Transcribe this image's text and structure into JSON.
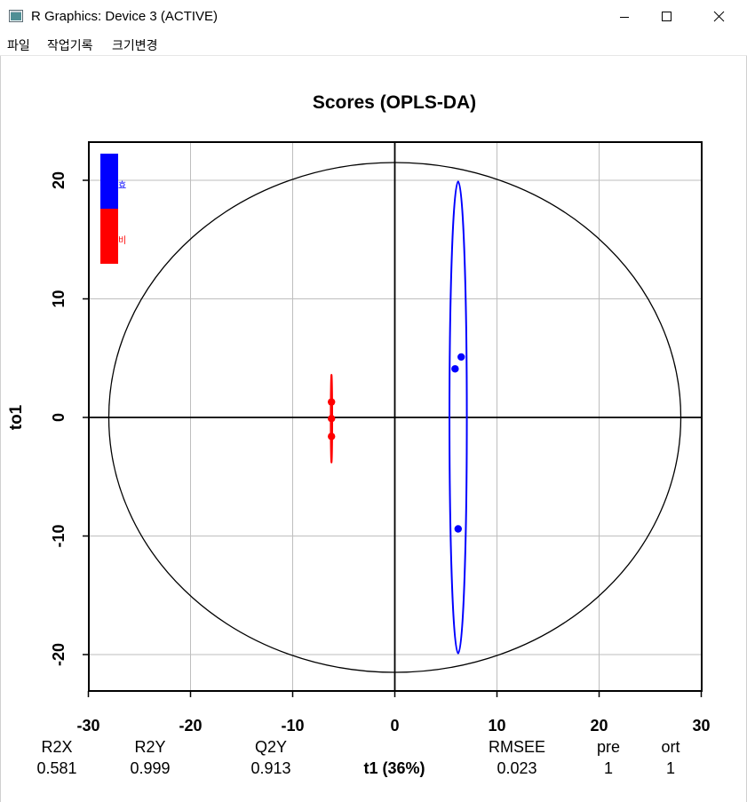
{
  "window": {
    "title": "R Graphics: Device 3 (ACTIVE)",
    "icon": "r-graphics-window-icon",
    "controls": [
      "minimize-icon",
      "maximize-icon",
      "close-icon"
    ]
  },
  "menu": {
    "items": [
      "파일",
      "작업기록",
      "크기변경"
    ]
  },
  "stats": {
    "headers": [
      "R2X",
      "R2Y",
      "Q2Y",
      "RMSEE",
      "pre",
      "ort"
    ],
    "values": [
      "0.581",
      "0.999",
      "0.913",
      "0.023",
      "1",
      "1"
    ]
  },
  "colors": {
    "group1": "#0000ff",
    "group2": "#ff0000",
    "grid": "#bebebe",
    "axis": "#000000"
  },
  "chart_data": {
    "type": "scatter",
    "title": "Scores (OPLS-DA)",
    "xlabel": "t1 (36%)",
    "ylabel": "to1",
    "xlim": [
      -30,
      30
    ],
    "ylim": [
      -23,
      23
    ],
    "xticks": [
      "-30",
      "-20",
      "-10",
      "0",
      "10",
      "20",
      "30"
    ],
    "yticks": [
      "-20",
      "-10",
      "0",
      "10",
      "20"
    ],
    "grid": true,
    "legend_position": "top-left",
    "series": [
      {
        "name": "효",
        "color": "#0000ff",
        "points": [
          [
            5.9,
            4.1
          ],
          [
            6.5,
            5.1
          ],
          [
            6.2,
            -9.4
          ]
        ],
        "ellipse": {
          "center": [
            6.2,
            0.0
          ],
          "rx": 0.85,
          "ry": 19.9
        }
      },
      {
        "name": "비",
        "color": "#ff0000",
        "points": [
          [
            -6.2,
            1.3
          ],
          [
            -6.2,
            -0.1
          ],
          [
            -6.2,
            -1.6
          ]
        ],
        "ellipse": {
          "center": [
            -6.2,
            -0.1
          ],
          "rx": 0.05,
          "ry": 3.7
        }
      }
    ],
    "hotelling_ellipse": {
      "center": [
        0,
        0
      ],
      "rx": 28.0,
      "ry": 21.5
    }
  }
}
